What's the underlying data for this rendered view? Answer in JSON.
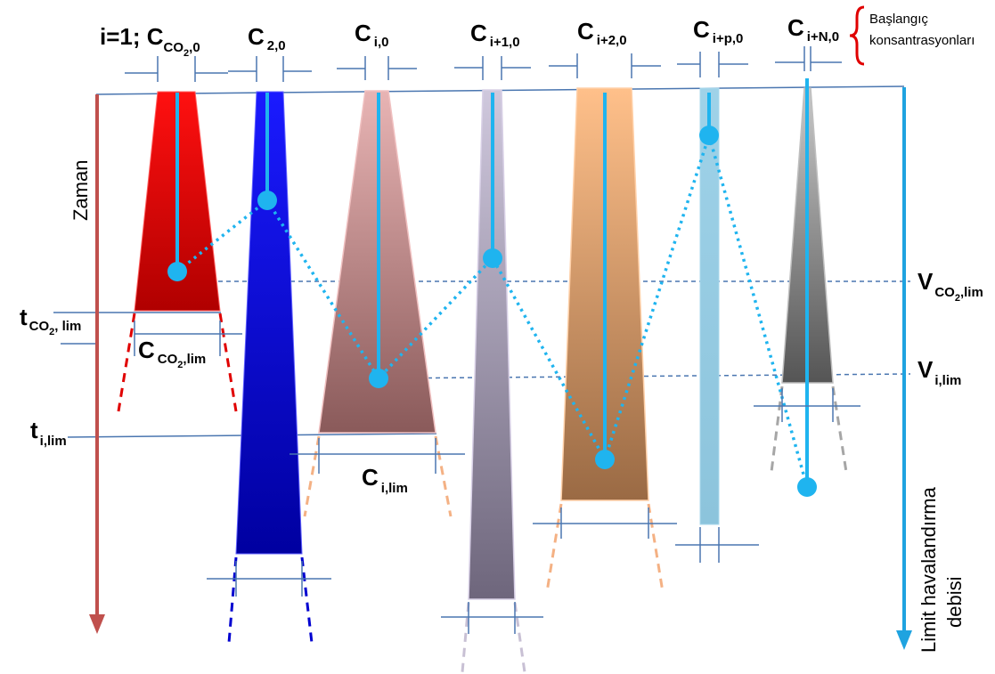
{
  "labels": {
    "top": {
      "c1_prefix": "i=1; C",
      "c1_sub": "CO",
      "c1_subsub": "2",
      "c1_tail": ",0",
      "c2_main": "C",
      "c2_sub": "2,0",
      "ci_main": "C",
      "ci_sub": "i,0",
      "ci1_main": "C",
      "ci1_sub": "i+1,0",
      "ci2_main": "C",
      "ci2_sub": "i+2,0",
      "cip_main": "C",
      "cip_sub": "i+p,0",
      "ciN_main": "C",
      "ciN_sub": "i+N,0"
    },
    "brace_line1": "Başlangıç",
    "brace_line2": "konsantrasyonları",
    "zaman": "Zaman",
    "limit_line1": "Limit havalandırma",
    "limit_line2": "debisi",
    "t_co2_main": "t",
    "t_co2_sub": "CO",
    "t_co2_subsub": "2",
    "t_co2_tail": ", lim",
    "t_i_main": "t",
    "t_i_sub": "i,lim",
    "c_co2lim_main": "C",
    "c_co2lim_sub": "CO",
    "c_co2lim_subsub": "2",
    "c_co2lim_tail": ",lim",
    "c_ilim_main": "C",
    "c_ilim_sub": "i,lim",
    "v_co2_main": "V",
    "v_co2_sub": "CO",
    "v_co2_subsub": "2",
    "v_co2_tail": ",lim",
    "v_i_main": "V",
    "v_i_sub": "i,lim"
  },
  "colors": {
    "time_arrow": "#c0504d",
    "flow_arrow": "#1fa3e0",
    "measure_line": "#4a76b0",
    "dot": "#1fb4ef",
    "brace": "#e00000"
  }
}
